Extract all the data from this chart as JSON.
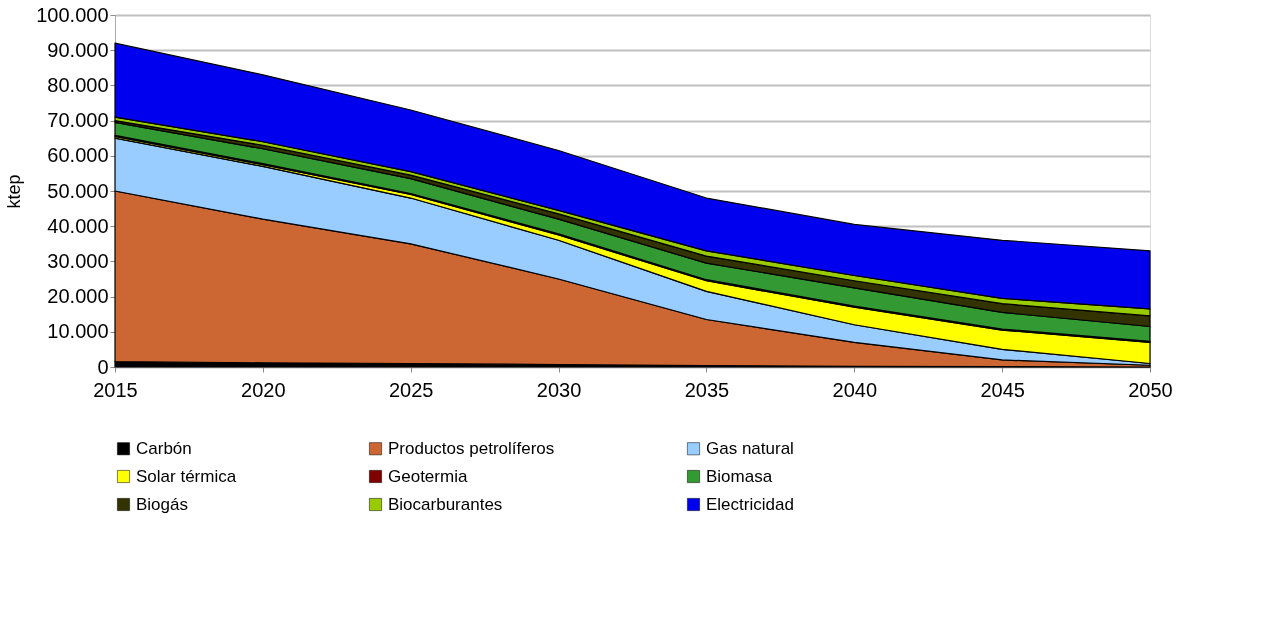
{
  "chart_data": {
    "type": "area",
    "stacked": true,
    "ylabel": "ktep",
    "x": [
      2015,
      2020,
      2025,
      2030,
      2035,
      2040,
      2045,
      2050
    ],
    "xlim": [
      2015,
      2050
    ],
    "xticks": [
      2015,
      2020,
      2025,
      2030,
      2035,
      2040,
      2045,
      2050
    ],
    "ylim": [
      0,
      100000
    ],
    "yticks": [
      {
        "value": 0,
        "label": "0"
      },
      {
        "value": 10000,
        "label": "10.000"
      },
      {
        "value": 20000,
        "label": "20.000"
      },
      {
        "value": 30000,
        "label": "30.000"
      },
      {
        "value": 40000,
        "label": "40.000"
      },
      {
        "value": 50000,
        "label": "50.000"
      },
      {
        "value": 60000,
        "label": "60.000"
      },
      {
        "value": 70000,
        "label": "70.000"
      },
      {
        "value": 80000,
        "label": "80.000"
      },
      {
        "value": 90000,
        "label": "90.000"
      },
      {
        "value": 100000,
        "label": "100.000"
      }
    ],
    "grid": "y",
    "legend": "bottom",
    "series": [
      {
        "name": "Carbón",
        "color": "#000000",
        "values": [
          1500,
          1200,
          1000,
          700,
          400,
          200,
          100,
          0
        ]
      },
      {
        "name": "Productos petrolíferos",
        "color": "#cc6633",
        "values": [
          48500,
          40800,
          34000,
          24300,
          13100,
          6800,
          1900,
          500
        ]
      },
      {
        "name": "Gas natural",
        "color": "#99ccff",
        "values": [
          15000,
          15000,
          13000,
          11000,
          8000,
          5000,
          3000,
          500
        ]
      },
      {
        "name": "Solar térmica",
        "color": "#ffff00",
        "values": [
          500,
          500,
          1000,
          1500,
          3000,
          5000,
          5500,
          6000
        ]
      },
      {
        "name": "Geotermia",
        "color": "#800000",
        "values": [
          300,
          300,
          300,
          300,
          300,
          300,
          300,
          300
        ]
      },
      {
        "name": "Biomasa",
        "color": "#339933",
        "values": [
          3700,
          4200,
          4200,
          4200,
          4700,
          5200,
          4700,
          4200
        ]
      },
      {
        "name": "Biogás",
        "color": "#333300",
        "values": [
          500,
          1000,
          1000,
          1500,
          2000,
          2000,
          2500,
          3000
        ]
      },
      {
        "name": "Biocarburantes",
        "color": "#99cc00",
        "values": [
          1000,
          1000,
          1000,
          1000,
          1500,
          1500,
          1500,
          2000
        ]
      },
      {
        "name": "Electricidad",
        "color": "#0000ee",
        "values": [
          21000,
          19000,
          17500,
          17000,
          15000,
          14500,
          16500,
          16500
        ]
      }
    ]
  }
}
